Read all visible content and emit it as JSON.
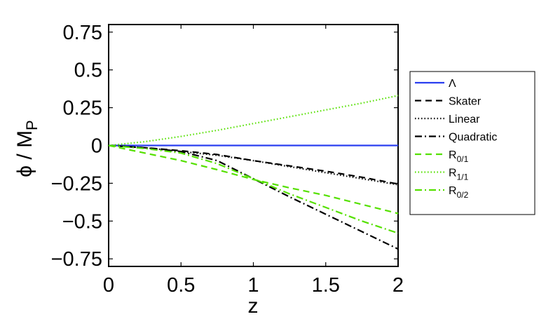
{
  "chart_data": {
    "type": "line",
    "title": "",
    "xlabel": "z",
    "ylabel": {
      "main": "ϕ / M",
      "sub": "P"
    },
    "xlim": [
      0,
      2
    ],
    "ylim": [
      -0.8,
      0.8
    ],
    "xticks": [
      0,
      0.5,
      1,
      1.5,
      2
    ],
    "xtick_labels": [
      "0",
      "0.5",
      "1",
      "1.5",
      "2"
    ],
    "yticks": [
      0.75,
      0.5,
      0.25,
      0,
      -0.25,
      -0.5,
      -0.75
    ],
    "ytick_labels": [
      "0.75",
      "0.5",
      "0.25",
      "0",
      "−0.25",
      "−0.5",
      "−0.75"
    ],
    "grid": false,
    "legend_position": "outside-right",
    "series": [
      {
        "name": "Λ",
        "color": "#2a3ff0",
        "dash": "solid",
        "x": [
          0,
          0.5,
          1,
          1.5,
          2
        ],
        "y": [
          0,
          0,
          0,
          0,
          0
        ]
      },
      {
        "name": "Skater",
        "color": "#000000",
        "dash": "dashed",
        "x": [
          0,
          0.25,
          0.5,
          0.75,
          1,
          1.25,
          1.5,
          1.75,
          2
        ],
        "y": [
          0,
          -0.015,
          -0.035,
          -0.06,
          -0.1,
          -0.135,
          -0.17,
          -0.21,
          -0.255
        ]
      },
      {
        "name": "Linear",
        "color": "#000000",
        "dash": "dotted",
        "x": [
          0,
          0.25,
          0.5,
          0.75,
          1,
          1.25,
          1.5,
          1.75,
          2
        ],
        "y": [
          0,
          -0.015,
          -0.04,
          -0.065,
          -0.1,
          -0.14,
          -0.18,
          -0.22,
          -0.26
        ]
      },
      {
        "name": "Quadratic",
        "color": "#000000",
        "dash": "dashdot",
        "x": [
          0,
          0.25,
          0.5,
          0.75,
          1,
          1.25,
          1.5,
          1.75,
          2
        ],
        "y": [
          0,
          -0.015,
          -0.04,
          -0.1,
          -0.22,
          -0.34,
          -0.455,
          -0.57,
          -0.685
        ]
      },
      {
        "name": "R",
        "sub": "0/1",
        "color": "#55e000",
        "dash": "dashed",
        "x": [
          0,
          0.25,
          0.5,
          0.75,
          1,
          1.25,
          1.5,
          1.75,
          2
        ],
        "y": [
          0,
          -0.05,
          -0.1,
          -0.16,
          -0.225,
          -0.28,
          -0.33,
          -0.39,
          -0.45
        ]
      },
      {
        "name": "R",
        "sub": "1/1",
        "color": "#55e000",
        "dash": "dotted",
        "x": [
          0,
          0.25,
          0.5,
          0.75,
          1,
          1.25,
          1.5,
          1.75,
          2
        ],
        "y": [
          0,
          0.025,
          0.06,
          0.1,
          0.145,
          0.19,
          0.235,
          0.28,
          0.33
        ]
      },
      {
        "name": "R",
        "sub": "0/2",
        "color": "#55e000",
        "dash": "dashdot",
        "x": [
          0,
          0.25,
          0.5,
          0.75,
          1,
          1.25,
          1.5,
          1.75,
          2
        ],
        "y": [
          0,
          -0.02,
          -0.05,
          -0.12,
          -0.22,
          -0.32,
          -0.41,
          -0.5,
          -0.58
        ]
      }
    ]
  }
}
